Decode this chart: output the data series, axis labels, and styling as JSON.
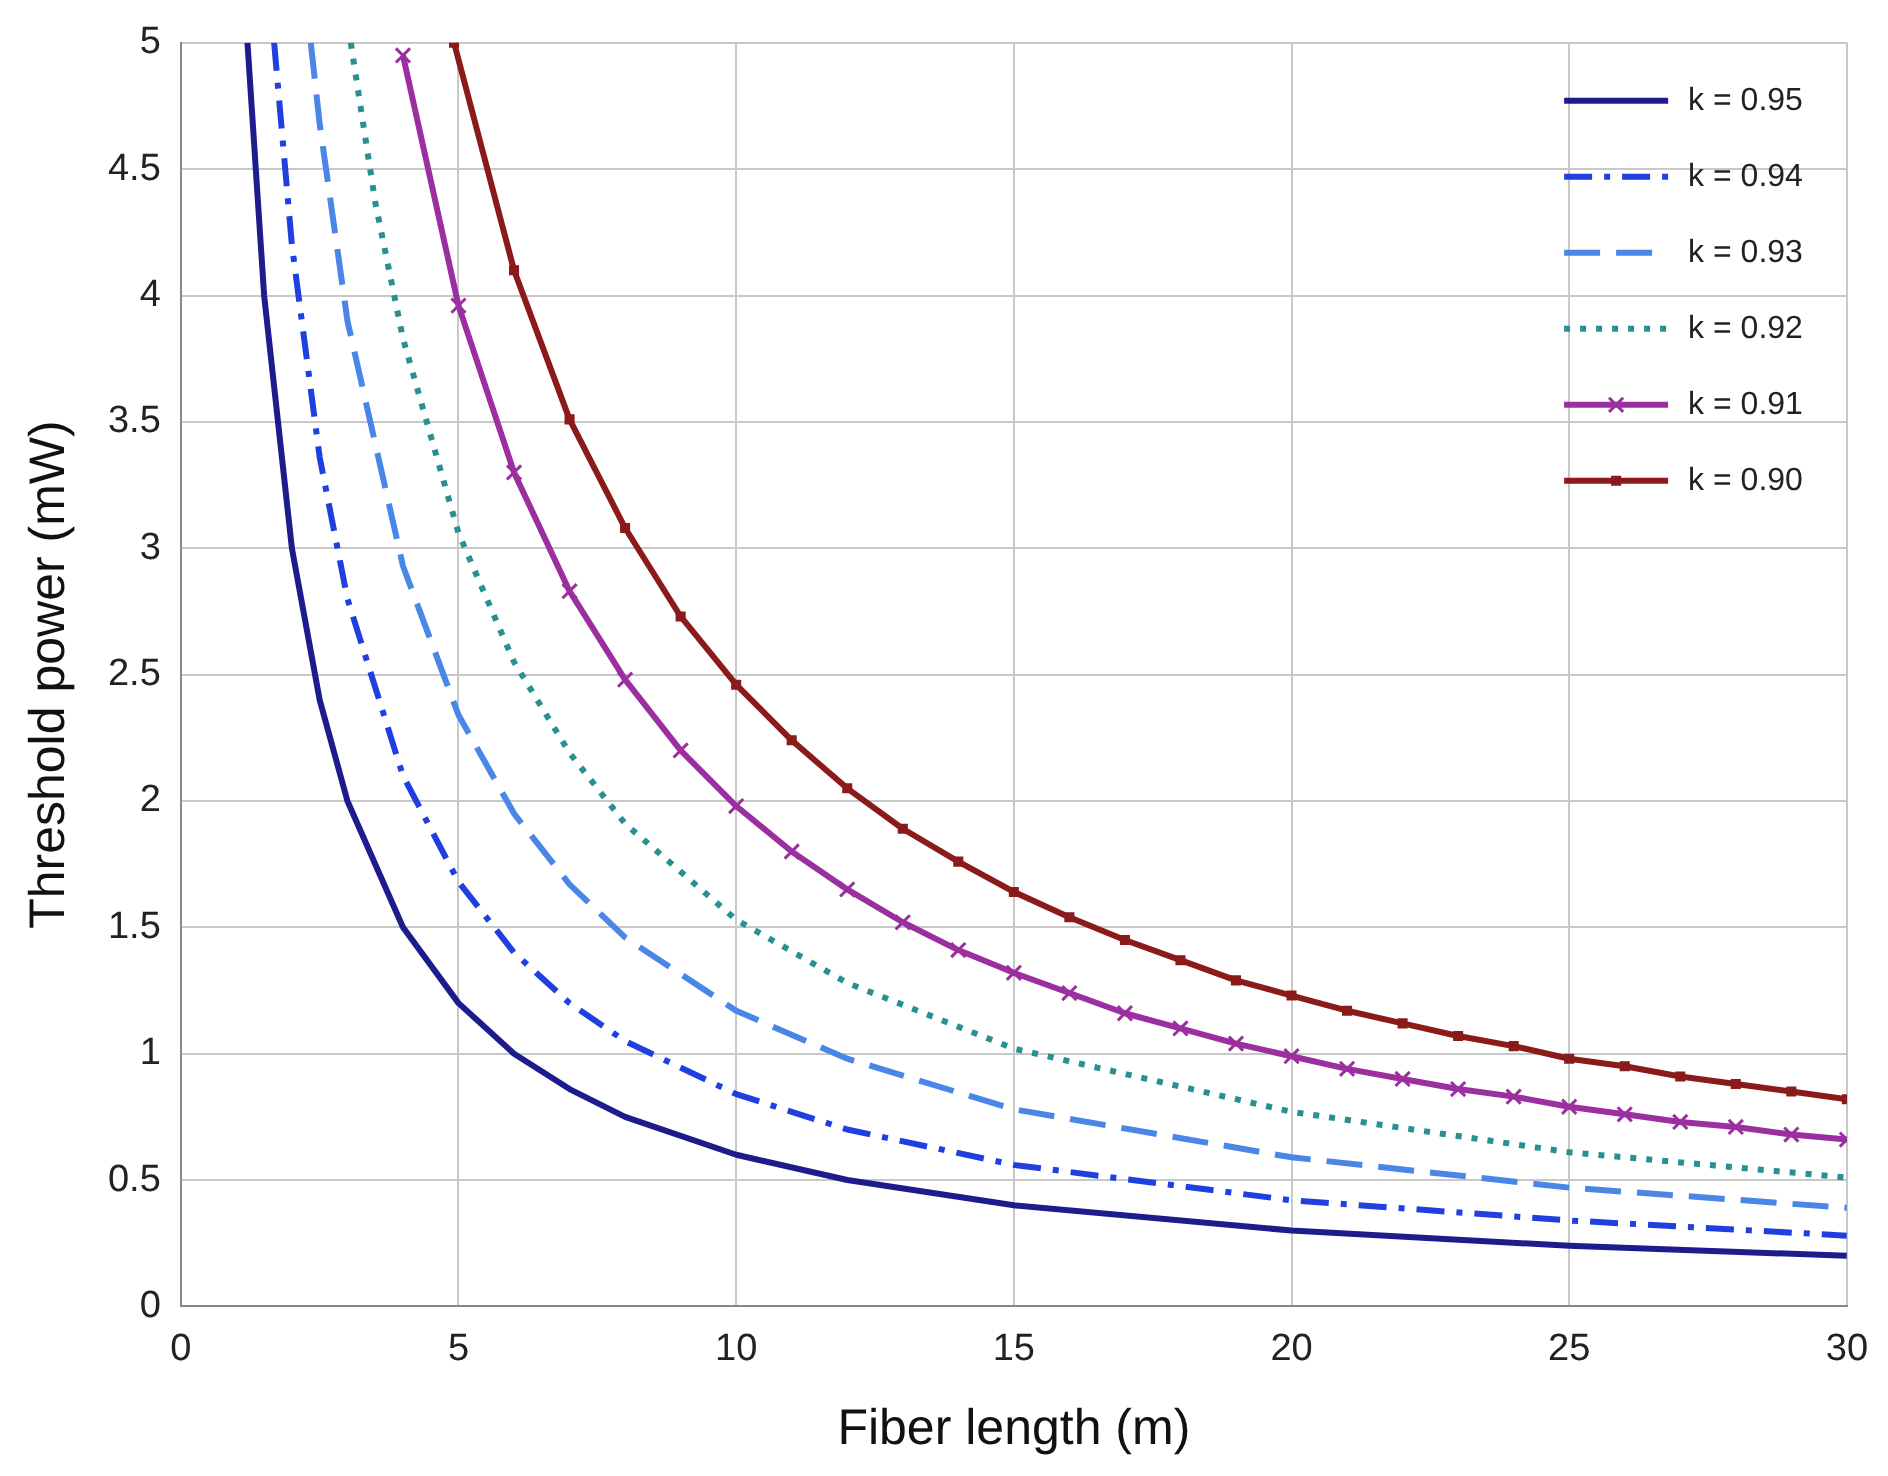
{
  "chart_data": {
    "type": "line",
    "xlabel": "Fiber length (m)",
    "ylabel": "Threshold power (mW)",
    "xlim": [
      0,
      30
    ],
    "xticks": [
      0,
      5,
      10,
      15,
      20,
      25,
      30
    ],
    "ylim": [
      0,
      5
    ],
    "yticks": [
      0,
      0.5,
      1,
      1.5,
      2,
      2.5,
      3,
      3.5,
      4,
      4.5,
      5
    ],
    "grid": true,
    "legend": "top right",
    "marker": "none",
    "series": [
      {
        "name": "k = 0.95",
        "color": "#1c1c8c",
        "line_style": "solid",
        "x": [
          1.2,
          1.5,
          2,
          2.5,
          3,
          4,
          5,
          6,
          7,
          8,
          10,
          12,
          15,
          20,
          25,
          30
        ],
        "values": [
          5,
          4,
          3,
          2.4,
          2,
          1.5,
          1.2,
          1,
          0.86,
          0.75,
          0.6,
          0.5,
          0.4,
          0.3,
          0.24,
          0.2
        ]
      },
      {
        "name": "k = 0.94",
        "color": "#1f3fe0",
        "line_style": "dashdot",
        "x": [
          1.68,
          2,
          2.5,
          3,
          4,
          5,
          6,
          7,
          8,
          10,
          12,
          15,
          20,
          25,
          30
        ],
        "values": [
          5,
          4.2,
          3.36,
          2.8,
          2.1,
          1.68,
          1.4,
          1.2,
          1.05,
          0.84,
          0.7,
          0.56,
          0.42,
          0.34,
          0.28
        ]
      },
      {
        "name": "k = 0.93",
        "color": "#4a86e8",
        "line_style": "dashed",
        "x": [
          2.34,
          2.5,
          3,
          4,
          5,
          6,
          7,
          8,
          10,
          12,
          15,
          20,
          25,
          30
        ],
        "values": [
          5,
          4.68,
          3.9,
          2.93,
          2.34,
          1.95,
          1.67,
          1.46,
          1.17,
          0.98,
          0.78,
          0.59,
          0.47,
          0.39
        ]
      },
      {
        "name": "k = 0.92",
        "color": "#2a8f8f",
        "line_style": "dotted",
        "x": [
          3.06,
          3.5,
          4,
          5,
          6,
          7,
          8,
          10,
          12,
          15,
          20,
          25,
          30
        ],
        "values": [
          5,
          4.37,
          3.83,
          3.06,
          2.55,
          2.19,
          1.91,
          1.53,
          1.28,
          1.02,
          0.77,
          0.61,
          0.51
        ]
      },
      {
        "name": "k = 0.91",
        "color": "#9b2fa0",
        "line_style": "solid",
        "marker": "cross",
        "x": [
          4,
          5,
          6,
          7,
          8,
          9,
          10,
          11,
          12,
          13,
          14,
          15,
          16,
          17,
          18,
          19,
          20,
          21,
          22,
          23,
          24,
          25,
          26,
          27,
          28,
          29,
          30
        ],
        "values": [
          4.95,
          3.96,
          3.3,
          2.83,
          2.48,
          2.2,
          1.98,
          1.8,
          1.65,
          1.52,
          1.41,
          1.32,
          1.24,
          1.16,
          1.1,
          1.04,
          0.99,
          0.94,
          0.9,
          0.86,
          0.83,
          0.79,
          0.76,
          0.73,
          0.71,
          0.68,
          0.66
        ]
      },
      {
        "name": "k = 0.90",
        "color": "#8b1a1a",
        "line_style": "solid",
        "marker": "square",
        "x": [
          4.92,
          6,
          7,
          8,
          9,
          10,
          11,
          12,
          13,
          14,
          15,
          16,
          17,
          18,
          19,
          20,
          21,
          22,
          23,
          24,
          25,
          26,
          27,
          28,
          29,
          30
        ],
        "values": [
          5,
          4.1,
          3.51,
          3.08,
          2.73,
          2.46,
          2.24,
          2.05,
          1.89,
          1.76,
          1.64,
          1.54,
          1.45,
          1.37,
          1.29,
          1.23,
          1.17,
          1.12,
          1.07,
          1.03,
          0.98,
          0.95,
          0.91,
          0.88,
          0.85,
          0.82
        ]
      }
    ]
  }
}
